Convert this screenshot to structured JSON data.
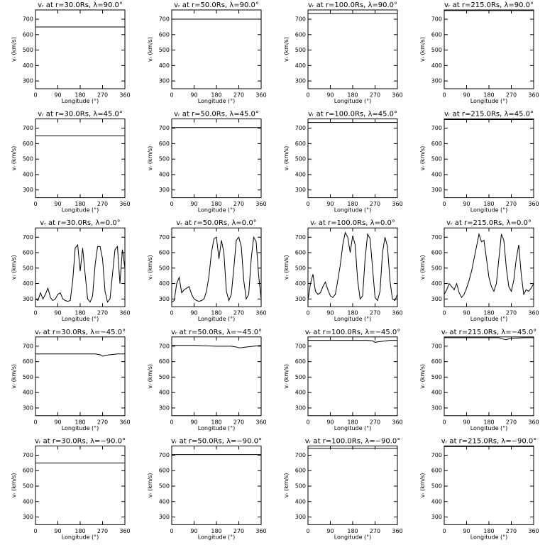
{
  "chart_data": [
    {
      "type": "line",
      "title": "vᵣ at r=30.0Rs, λ=90.0°",
      "xlabel": "Longitude (°)",
      "ylabel": "vᵣ (km/s)",
      "x": [
        0,
        360
      ],
      "series": [
        {
          "color": "#000000",
          "values": [
            650,
            650
          ]
        }
      ],
      "xlim": [
        0,
        360
      ],
      "ylim": [
        250,
        760
      ],
      "xticks": [
        0,
        90,
        180,
        270,
        360
      ],
      "yticks": [
        300,
        400,
        500,
        600,
        700
      ]
    },
    {
      "type": "line",
      "title": "vᵣ at r=50.0Rs, λ=90.0°",
      "xlabel": "Longitude (°)",
      "ylabel": "vᵣ (km/s)",
      "x": [
        0,
        360
      ],
      "series": [
        {
          "color": "#000000",
          "values": [
            700,
            700
          ]
        }
      ],
      "xlim": [
        0,
        360
      ],
      "ylim": [
        250,
        760
      ],
      "xticks": [
        0,
        90,
        180,
        270,
        360
      ],
      "yticks": [
        300,
        400,
        500,
        600,
        700
      ]
    },
    {
      "type": "line",
      "title": "vᵣ at r=100.0Rs, λ=90.0°",
      "xlabel": "Longitude (°)",
      "ylabel": "vᵣ (km/s)",
      "x": [
        0,
        360
      ],
      "series": [
        {
          "color": "#000000",
          "values": [
            737,
            737
          ]
        }
      ],
      "xlim": [
        0,
        360
      ],
      "ylim": [
        250,
        760
      ],
      "xticks": [
        0,
        90,
        180,
        270,
        360
      ],
      "yticks": [
        300,
        400,
        500,
        600,
        700
      ]
    },
    {
      "type": "line",
      "title": "vᵣ at r=215.0Rs, λ=90.0°",
      "xlabel": "Longitude (°)",
      "ylabel": "vᵣ (km/s)",
      "x": [
        0,
        360
      ],
      "series": [
        {
          "color": "#000000",
          "values": [
            756,
            756
          ]
        }
      ],
      "xlim": [
        0,
        360
      ],
      "ylim": [
        250,
        760
      ],
      "xticks": [
        0,
        90,
        180,
        270,
        360
      ],
      "yticks": [
        300,
        400,
        500,
        600,
        700
      ]
    },
    {
      "type": "line",
      "title": "vᵣ at r=30.0Rs, λ=45.0°",
      "xlabel": "Longitude (°)",
      "ylabel": "vᵣ (km/s)",
      "x": [
        0,
        360
      ],
      "series": [
        {
          "color": "#000000",
          "values": [
            650,
            650
          ]
        }
      ],
      "xlim": [
        0,
        360
      ],
      "ylim": [
        250,
        760
      ],
      "xticks": [
        0,
        90,
        180,
        270,
        360
      ],
      "yticks": [
        300,
        400,
        500,
        600,
        700
      ]
    },
    {
      "type": "line",
      "title": "vᵣ at r=50.0Rs, λ=45.0°",
      "xlabel": "Longitude (°)",
      "ylabel": "vᵣ (km/s)",
      "x": [
        0,
        360
      ],
      "series": [
        {
          "color": "#000000",
          "values": [
            704,
            704
          ]
        }
      ],
      "xlim": [
        0,
        360
      ],
      "ylim": [
        250,
        760
      ],
      "xticks": [
        0,
        90,
        180,
        270,
        360
      ],
      "yticks": [
        300,
        400,
        500,
        600,
        700
      ]
    },
    {
      "type": "line",
      "title": "vᵣ at r=100.0Rs, λ=45.0°",
      "xlabel": "Longitude (°)",
      "ylabel": "vᵣ (km/s)",
      "x": [
        0,
        360
      ],
      "series": [
        {
          "color": "#000000",
          "values": [
            737,
            737
          ]
        }
      ],
      "xlim": [
        0,
        360
      ],
      "ylim": [
        250,
        760
      ],
      "xticks": [
        0,
        90,
        180,
        270,
        360
      ],
      "yticks": [
        300,
        400,
        500,
        600,
        700
      ]
    },
    {
      "type": "line",
      "title": "vᵣ at r=215.0Rs, λ=45.0°",
      "xlabel": "Longitude (°)",
      "ylabel": "vᵣ (km/s)",
      "x": [
        0,
        360
      ],
      "series": [
        {
          "color": "#000000",
          "values": [
            756,
            756
          ]
        }
      ],
      "xlim": [
        0,
        360
      ],
      "ylim": [
        250,
        760
      ],
      "xticks": [
        0,
        90,
        180,
        270,
        360
      ],
      "yticks": [
        300,
        400,
        500,
        600,
        700
      ]
    },
    {
      "type": "line",
      "title": "vᵣ at r=30.0Rs, λ=0.0°",
      "xlabel": "Longitude (°)",
      "ylabel": "vᵣ (km/s)",
      "x": [
        0,
        10,
        20,
        30,
        40,
        50,
        60,
        70,
        80,
        90,
        100,
        110,
        120,
        130,
        140,
        150,
        160,
        170,
        180,
        190,
        200,
        210,
        220,
        230,
        240,
        250,
        260,
        270,
        280,
        290,
        300,
        310,
        320,
        330,
        340,
        350,
        360
      ],
      "series": [
        {
          "color": "#000000",
          "values": [
            300,
            290,
            340,
            300,
            330,
            370,
            310,
            290,
            300,
            330,
            340,
            300,
            290,
            285,
            290,
            420,
            630,
            650,
            480,
            630,
            460,
            300,
            280,
            320,
            520,
            640,
            640,
            560,
            350,
            280,
            300,
            460,
            620,
            640,
            400,
            620,
            500
          ]
        }
      ],
      "xlim": [
        0,
        360
      ],
      "ylim": [
        250,
        760
      ],
      "xticks": [
        0,
        90,
        180,
        270,
        360
      ],
      "yticks": [
        300,
        400,
        500,
        600,
        700
      ]
    },
    {
      "type": "line",
      "title": "vᵣ at r=50.0Rs, λ=0.0°",
      "xlabel": "Longitude (°)",
      "ylabel": "vᵣ (km/s)",
      "x": [
        0,
        10,
        20,
        30,
        40,
        50,
        60,
        70,
        80,
        90,
        100,
        110,
        120,
        130,
        140,
        150,
        160,
        170,
        180,
        190,
        200,
        210,
        220,
        230,
        240,
        250,
        260,
        270,
        280,
        290,
        300,
        310,
        320,
        330,
        340,
        350,
        360
      ],
      "series": [
        {
          "color": "#000000",
          "values": [
            280,
            290,
            400,
            440,
            340,
            360,
            370,
            380,
            330,
            300,
            290,
            285,
            290,
            300,
            350,
            450,
            600,
            690,
            700,
            560,
            680,
            600,
            350,
            290,
            330,
            500,
            680,
            700,
            640,
            420,
            300,
            330,
            560,
            700,
            670,
            450,
            300
          ]
        }
      ],
      "xlim": [
        0,
        360
      ],
      "ylim": [
        250,
        760
      ],
      "xticks": [
        0,
        90,
        180,
        270,
        360
      ],
      "yticks": [
        300,
        400,
        500,
        600,
        700
      ]
    },
    {
      "type": "line",
      "title": "vᵣ at r=100.0Rs, λ=0.0°",
      "xlabel": "Longitude (°)",
      "ylabel": "vᵣ (km/s)",
      "x": [
        0,
        10,
        20,
        30,
        40,
        50,
        60,
        70,
        80,
        90,
        100,
        110,
        120,
        130,
        140,
        150,
        160,
        170,
        180,
        190,
        200,
        210,
        220,
        230,
        240,
        250,
        260,
        270,
        280,
        290,
        300,
        310,
        320,
        330,
        340,
        350,
        360
      ],
      "series": [
        {
          "color": "#000000",
          "values": [
            290,
            400,
            460,
            350,
            330,
            340,
            380,
            410,
            360,
            320,
            310,
            330,
            420,
            520,
            650,
            730,
            700,
            600,
            710,
            650,
            420,
            300,
            320,
            560,
            720,
            690,
            500,
            310,
            290,
            350,
            600,
            700,
            640,
            420,
            300,
            290,
            330
          ]
        }
      ],
      "xlim": [
        0,
        360
      ],
      "ylim": [
        250,
        760
      ],
      "xticks": [
        0,
        90,
        180,
        270,
        360
      ],
      "yticks": [
        300,
        400,
        500,
        600,
        700
      ]
    },
    {
      "type": "line",
      "title": "vᵣ at r=215.0Rs, λ=0.0°",
      "xlabel": "Longitude (°)",
      "ylabel": "vᵣ (km/s)",
      "x": [
        0,
        10,
        20,
        30,
        40,
        50,
        60,
        70,
        80,
        90,
        100,
        110,
        120,
        130,
        140,
        150,
        160,
        170,
        180,
        190,
        200,
        210,
        220,
        230,
        240,
        250,
        260,
        270,
        280,
        290,
        300,
        310,
        320,
        330,
        340,
        350,
        360
      ],
      "series": [
        {
          "color": "#000000",
          "values": [
            330,
            360,
            400,
            380,
            360,
            400,
            340,
            310,
            330,
            370,
            420,
            480,
            560,
            640,
            720,
            670,
            680,
            560,
            440,
            380,
            350,
            400,
            560,
            720,
            680,
            500,
            380,
            350,
            420,
            560,
            650,
            460,
            330,
            360,
            350,
            370,
            400
          ]
        }
      ],
      "xlim": [
        0,
        360
      ],
      "ylim": [
        250,
        760
      ],
      "xticks": [
        0,
        90,
        180,
        270,
        360
      ],
      "yticks": [
        300,
        400,
        500,
        600,
        700
      ]
    },
    {
      "type": "line",
      "title": "vᵣ at r=30.0Rs, λ=−45.0°",
      "xlabel": "Longitude (°)",
      "ylabel": "vᵣ (km/s)",
      "x": [
        0,
        90,
        180,
        240,
        260,
        270,
        280,
        300,
        330,
        360
      ],
      "series": [
        {
          "color": "#000000",
          "values": [
            650,
            650,
            650,
            650,
            645,
            635,
            640,
            645,
            650,
            650
          ]
        }
      ],
      "xlim": [
        0,
        360
      ],
      "ylim": [
        250,
        760
      ],
      "xticks": [
        0,
        90,
        180,
        270,
        360
      ],
      "yticks": [
        300,
        400,
        500,
        600,
        700
      ]
    },
    {
      "type": "line",
      "title": "vᵣ at r=50.0Rs, λ=−45.0°",
      "xlabel": "Longitude (°)",
      "ylabel": "vᵣ (km/s)",
      "x": [
        0,
        90,
        180,
        240,
        260,
        270,
        280,
        300,
        330,
        360
      ],
      "series": [
        {
          "color": "#000000",
          "values": [
            705,
            705,
            700,
            700,
            695,
            690,
            690,
            695,
            700,
            705
          ]
        }
      ],
      "xlim": [
        0,
        360
      ],
      "ylim": [
        250,
        760
      ],
      "xticks": [
        0,
        90,
        180,
        270,
        360
      ],
      "yticks": [
        300,
        400,
        500,
        600,
        700
      ]
    },
    {
      "type": "line",
      "title": "vᵣ at r=100.0Rs, λ=−45.0°",
      "xlabel": "Longitude (°)",
      "ylabel": "vᵣ (km/s)",
      "x": [
        0,
        90,
        180,
        240,
        260,
        270,
        280,
        300,
        330,
        360
      ],
      "series": [
        {
          "color": "#000000",
          "values": [
            738,
            738,
            738,
            738,
            735,
            725,
            728,
            732,
            738,
            738
          ]
        }
      ],
      "xlim": [
        0,
        360
      ],
      "ylim": [
        250,
        760
      ],
      "xticks": [
        0,
        90,
        180,
        270,
        360
      ],
      "yticks": [
        300,
        400,
        500,
        600,
        700
      ]
    },
    {
      "type": "line",
      "title": "vᵣ at r=215.0Rs, λ=−45.0°",
      "xlabel": "Longitude (°)",
      "ylabel": "vᵣ (km/s)",
      "x": [
        0,
        90,
        180,
        220,
        240,
        250,
        260,
        280,
        330,
        360
      ],
      "series": [
        {
          "color": "#000000",
          "values": [
            755,
            755,
            755,
            755,
            745,
            742,
            748,
            752,
            755,
            755
          ]
        }
      ],
      "xlim": [
        0,
        360
      ],
      "ylim": [
        250,
        760
      ],
      "xticks": [
        0,
        90,
        180,
        270,
        360
      ],
      "yticks": [
        300,
        400,
        500,
        600,
        700
      ]
    },
    {
      "type": "line",
      "title": "vᵣ at r=30.0Rs, λ=−90.0°",
      "xlabel": "Longitude (°)",
      "ylabel": "vᵣ (km/s)",
      "x": [
        0,
        360
      ],
      "series": [
        {
          "color": "#000000",
          "values": [
            650,
            650
          ]
        }
      ],
      "xlim": [
        0,
        360
      ],
      "ylim": [
        250,
        760
      ],
      "xticks": [
        0,
        90,
        180,
        270,
        360
      ],
      "yticks": [
        300,
        400,
        500,
        600,
        700
      ]
    },
    {
      "type": "line",
      "title": "vᵣ at r=50.0Rs, λ=−90.0°",
      "xlabel": "Longitude (°)",
      "ylabel": "vᵣ (km/s)",
      "x": [
        0,
        360
      ],
      "series": [
        {
          "color": "#000000",
          "values": [
            704,
            704
          ]
        }
      ],
      "xlim": [
        0,
        360
      ],
      "ylim": [
        250,
        760
      ],
      "xticks": [
        0,
        90,
        180,
        270,
        360
      ],
      "yticks": [
        300,
        400,
        500,
        600,
        700
      ]
    },
    {
      "type": "line",
      "title": "vᵣ at r=100.0Rs, λ=−90.0°",
      "xlabel": "Longitude (°)",
      "ylabel": "vᵣ (km/s)",
      "x": [
        0,
        360
      ],
      "series": [
        {
          "color": "#000000",
          "values": [
            745,
            745
          ]
        }
      ],
      "xlim": [
        0,
        360
      ],
      "ylim": [
        250,
        760
      ],
      "xticks": [
        0,
        90,
        180,
        270,
        360
      ],
      "yticks": [
        300,
        400,
        500,
        600,
        700
      ]
    },
    {
      "type": "line",
      "title": "vᵣ at r=215.0Rs, λ=−90.0°",
      "xlabel": "Longitude (°)",
      "ylabel": "vᵣ (km/s)",
      "x": [
        0,
        360
      ],
      "series": [
        {
          "color": "#000000",
          "values": [
            756,
            756
          ]
        }
      ],
      "xlim": [
        0,
        360
      ],
      "ylim": [
        250,
        760
      ],
      "xticks": [
        0,
        90,
        180,
        270,
        360
      ],
      "yticks": [
        300,
        400,
        500,
        600,
        700
      ]
    }
  ]
}
